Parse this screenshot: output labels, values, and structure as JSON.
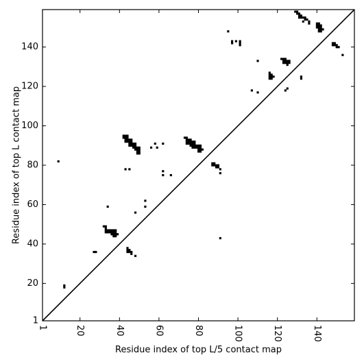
{
  "chart_data": {
    "type": "scatter",
    "subtype": "contact-map",
    "xlabel": "Residue index of top L/5 contact map",
    "ylabel": "Residue index of top L contact map",
    "xlim": [
      1,
      159
    ],
    "ylim": [
      1,
      159
    ],
    "xticks": [
      1,
      20,
      40,
      60,
      80,
      100,
      120,
      140
    ],
    "xtick_labels": [
      "1",
      "20",
      "40",
      "60",
      "80",
      "100",
      "120",
      "140"
    ],
    "yticks": [
      1,
      20,
      40,
      60,
      80,
      100,
      120,
      140
    ],
    "ytick_labels": [
      "1",
      "20",
      "40",
      "60",
      "80",
      "100",
      "120",
      "140"
    ],
    "x_tick_label_rotation_deg": 90,
    "diagonal_line": true,
    "grid": false,
    "marker_color": "#000000",
    "points": [
      [
        9,
        82
      ],
      [
        12,
        18
      ],
      [
        12,
        19
      ],
      [
        27,
        36
      ],
      [
        28,
        36
      ],
      [
        32,
        49
      ],
      [
        33,
        48
      ],
      [
        33,
        49
      ],
      [
        34,
        59
      ],
      [
        33,
        46
      ],
      [
        34,
        46
      ],
      [
        33,
        47
      ],
      [
        34,
        47
      ],
      [
        35,
        46
      ],
      [
        36,
        46
      ],
      [
        35,
        47
      ],
      [
        36,
        47
      ],
      [
        37,
        46
      ],
      [
        38,
        46
      ],
      [
        37,
        47
      ],
      [
        38,
        47
      ],
      [
        36,
        45
      ],
      [
        37,
        45
      ],
      [
        38,
        45
      ],
      [
        39,
        45
      ],
      [
        37,
        44
      ],
      [
        38,
        44
      ],
      [
        44,
        38
      ],
      [
        44,
        37
      ],
      [
        45,
        37
      ],
      [
        44,
        36
      ],
      [
        45,
        36
      ],
      [
        46,
        36
      ],
      [
        46,
        35
      ],
      [
        48,
        34
      ],
      [
        43,
        78
      ],
      [
        45,
        78
      ],
      [
        42,
        95
      ],
      [
        43,
        95
      ],
      [
        44,
        95
      ],
      [
        42,
        94
      ],
      [
        43,
        94
      ],
      [
        44,
        94
      ],
      [
        43,
        93
      ],
      [
        44,
        93
      ],
      [
        45,
        93
      ],
      [
        46,
        93
      ],
      [
        43,
        92
      ],
      [
        44,
        92
      ],
      [
        45,
        92
      ],
      [
        46,
        92
      ],
      [
        45,
        91
      ],
      [
        46,
        91
      ],
      [
        47,
        91
      ],
      [
        48,
        91
      ],
      [
        45,
        90
      ],
      [
        46,
        90
      ],
      [
        47,
        90
      ],
      [
        48,
        90
      ],
      [
        47,
        89
      ],
      [
        48,
        89
      ],
      [
        49,
        89
      ],
      [
        50,
        89
      ],
      [
        48,
        88
      ],
      [
        49,
        88
      ],
      [
        50,
        88
      ],
      [
        49,
        87
      ],
      [
        50,
        87
      ],
      [
        49,
        86
      ],
      [
        50,
        86
      ],
      [
        48,
        56
      ],
      [
        53,
        62
      ],
      [
        53,
        59
      ],
      [
        56,
        89
      ],
      [
        58,
        91
      ],
      [
        59,
        89
      ],
      [
        62,
        91
      ],
      [
        62,
        77
      ],
      [
        62,
        75
      ],
      [
        66,
        75
      ],
      [
        73,
        94
      ],
      [
        74,
        94
      ],
      [
        74,
        93
      ],
      [
        75,
        93
      ],
      [
        76,
        93
      ],
      [
        74,
        92
      ],
      [
        75,
        92
      ],
      [
        76,
        92
      ],
      [
        77,
        92
      ],
      [
        78,
        92
      ],
      [
        74,
        91
      ],
      [
        75,
        91
      ],
      [
        76,
        91
      ],
      [
        77,
        91
      ],
      [
        78,
        91
      ],
      [
        76,
        90
      ],
      [
        77,
        90
      ],
      [
        78,
        90
      ],
      [
        79,
        90
      ],
      [
        80,
        90
      ],
      [
        81,
        90
      ],
      [
        77,
        89
      ],
      [
        78,
        89
      ],
      [
        79,
        89
      ],
      [
        80,
        89
      ],
      [
        81,
        89
      ],
      [
        80,
        88
      ],
      [
        81,
        88
      ],
      [
        82,
        88
      ],
      [
        80,
        87
      ],
      [
        81,
        87
      ],
      [
        87,
        81
      ],
      [
        88,
        81
      ],
      [
        87,
        80
      ],
      [
        88,
        80
      ],
      [
        89,
        80
      ],
      [
        90,
        80
      ],
      [
        89,
        79
      ],
      [
        90,
        79
      ],
      [
        91,
        78
      ],
      [
        91,
        76
      ],
      [
        91,
        43
      ],
      [
        95,
        148
      ],
      [
        97,
        143
      ],
      [
        97,
        142
      ],
      [
        99,
        143
      ],
      [
        101,
        143
      ],
      [
        101,
        142
      ],
      [
        101,
        141
      ],
      [
        107,
        118
      ],
      [
        110,
        133
      ],
      [
        110,
        117
      ],
      [
        116,
        127
      ],
      [
        116,
        126
      ],
      [
        117,
        126
      ],
      [
        116,
        125
      ],
      [
        117,
        125
      ],
      [
        118,
        125
      ],
      [
        116,
        124
      ],
      [
        117,
        124
      ],
      [
        122,
        134
      ],
      [
        123,
        134
      ],
      [
        124,
        134
      ],
      [
        123,
        133
      ],
      [
        124,
        133
      ],
      [
        125,
        133
      ],
      [
        126,
        133
      ],
      [
        123,
        132
      ],
      [
        124,
        132
      ],
      [
        125,
        132
      ],
      [
        126,
        132
      ],
      [
        125,
        131
      ],
      [
        124,
        118
      ],
      [
        125,
        119
      ],
      [
        129,
        158
      ],
      [
        130,
        158
      ],
      [
        130,
        157
      ],
      [
        131,
        157
      ],
      [
        131,
        156
      ],
      [
        132,
        156
      ],
      [
        131,
        155
      ],
      [
        132,
        155
      ],
      [
        133,
        155
      ],
      [
        134,
        155
      ],
      [
        134,
        154
      ],
      [
        135,
        154
      ],
      [
        133,
        153
      ],
      [
        136,
        153
      ],
      [
        136,
        152
      ],
      [
        132,
        125
      ],
      [
        132,
        124
      ],
      [
        140,
        152
      ],
      [
        141,
        152
      ],
      [
        140,
        151
      ],
      [
        141,
        151
      ],
      [
        142,
        151
      ],
      [
        140,
        150
      ],
      [
        141,
        150
      ],
      [
        142,
        150
      ],
      [
        141,
        149
      ],
      [
        142,
        149
      ],
      [
        143,
        149
      ],
      [
        141,
        148
      ],
      [
        142,
        148
      ],
      [
        148,
        142
      ],
      [
        149,
        142
      ],
      [
        148,
        141
      ],
      [
        149,
        141
      ],
      [
        150,
        141
      ],
      [
        150,
        140
      ],
      [
        151,
        140
      ],
      [
        153,
        136
      ]
    ]
  }
}
